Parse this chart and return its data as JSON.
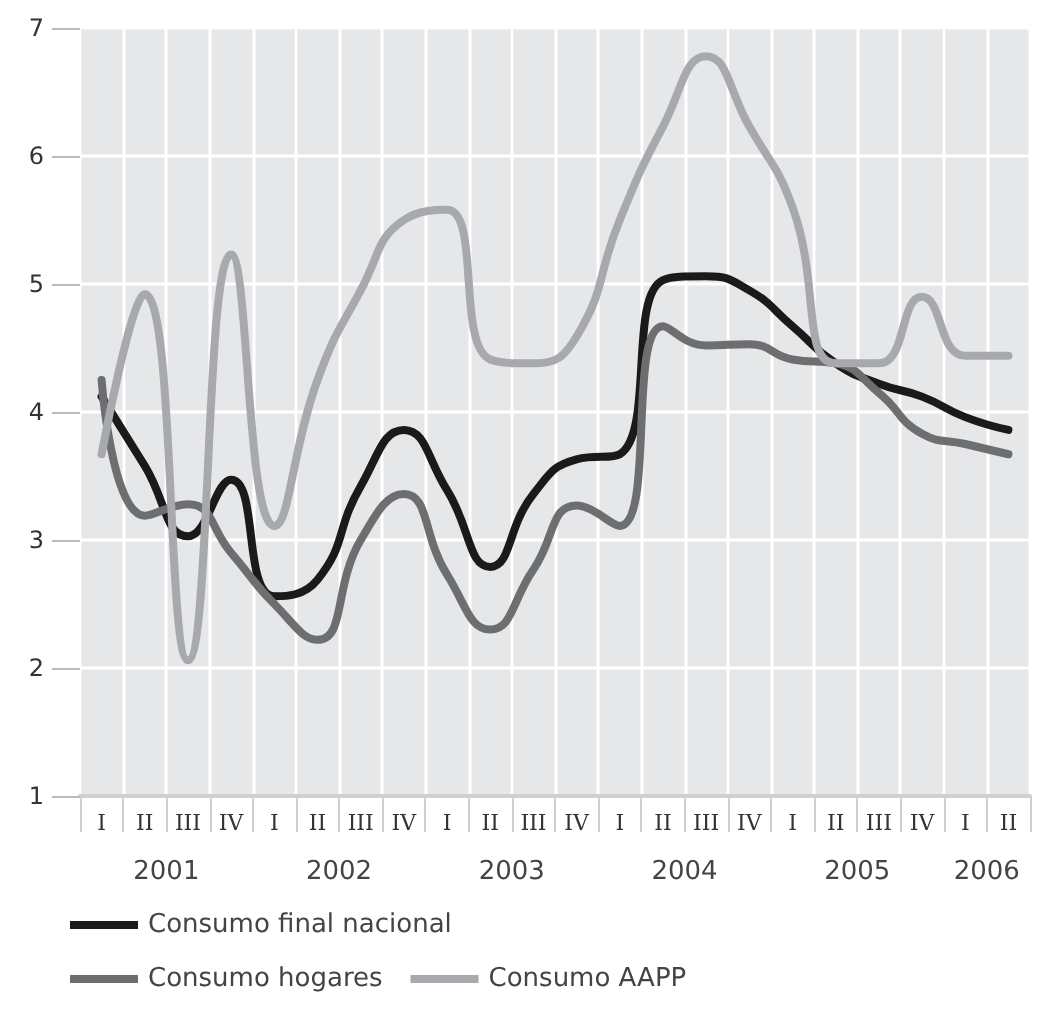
{
  "chart_data": {
    "type": "line",
    "categories": [
      "I",
      "II",
      "III",
      "IV",
      "I",
      "II",
      "III",
      "IV",
      "I",
      "II",
      "III",
      "IV",
      "I",
      "II",
      "III",
      "IV",
      "I",
      "II",
      "III",
      "IV",
      "I",
      "II"
    ],
    "series": [
      {
        "name": "Consumo final nacional",
        "color": "#1a1a1a",
        "values": [
          4.12,
          3.58,
          3.03,
          3.47,
          2.56,
          2.69,
          3.42,
          3.86,
          3.39,
          2.79,
          3.36,
          3.63,
          3.67,
          5.03,
          5.06,
          4.95,
          4.67,
          4.38,
          4.22,
          4.12,
          3.96,
          3.86
        ]
      },
      {
        "name": "Consumo hogares",
        "color": "#6d6e70",
        "values": [
          4.25,
          3.19,
          3.28,
          2.9,
          2.5,
          2.22,
          3.0,
          3.36,
          2.73,
          2.3,
          2.77,
          3.27,
          3.11,
          4.67,
          4.52,
          4.53,
          4.41,
          4.38,
          4.15,
          3.83,
          3.75,
          3.67
        ]
      },
      {
        "name": "Consumo AAPP",
        "color": "#a7a9ac",
        "values": [
          3.67,
          4.92,
          2.06,
          5.23,
          3.11,
          4.25,
          4.95,
          5.5,
          5.58,
          4.41,
          4.38,
          4.59,
          5.5,
          6.23,
          6.78,
          6.23,
          5.6,
          4.38,
          4.38,
          4.9,
          4.44,
          4.44
        ]
      }
    ],
    "annotations": [
      "2001",
      "2002",
      "2003",
      "2004",
      "2005",
      "2006"
    ],
    "ylim": [
      1,
      7
    ],
    "yticks": [
      1,
      2,
      3,
      4,
      5,
      6,
      7
    ],
    "grid": true,
    "legend": "bottom",
    "marker": "none",
    "line_style": "solid"
  }
}
